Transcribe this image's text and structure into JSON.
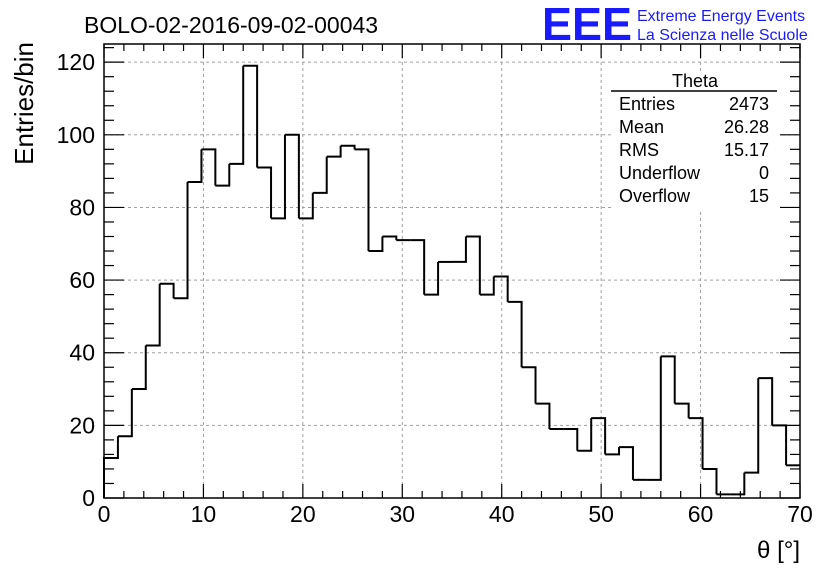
{
  "title": "BOLO-02-2016-09-02-00043",
  "logo": {
    "mark": "EEE",
    "line1": "Extreme Energy Events",
    "line2": "La Scienza nelle Scuole",
    "color": "#1a1aff"
  },
  "stats": {
    "name": "Theta",
    "rows": [
      {
        "label": "Entries",
        "value": "2473"
      },
      {
        "label": "Mean",
        "value": "26.28"
      },
      {
        "label": "RMS",
        "value": "15.17"
      },
      {
        "label": "Underflow",
        "value": "0"
      },
      {
        "label": "Overflow",
        "value": "15"
      }
    ]
  },
  "chart_data": {
    "type": "histogram",
    "title": "BOLO-02-2016-09-02-00043",
    "xlabel": "θ [°]",
    "ylabel": "Entries/bin",
    "xlim": [
      0,
      70
    ],
    "ylim": [
      0,
      125
    ],
    "bin_width": 1.4,
    "x_ticks": [
      0,
      10,
      20,
      30,
      40,
      50,
      60,
      70
    ],
    "y_ticks": [
      0,
      20,
      40,
      60,
      80,
      100,
      120
    ],
    "grid": true,
    "counts": [
      11,
      17,
      30,
      42,
      59,
      55,
      87,
      96,
      86,
      92,
      119,
      91,
      77,
      100,
      77,
      84,
      94,
      97,
      96,
      68,
      72,
      71,
      71,
      56,
      65,
      65,
      72,
      56,
      61,
      54,
      36,
      26,
      19,
      19,
      13,
      22,
      12,
      14,
      5,
      5,
      39,
      26,
      22,
      8,
      1,
      1,
      7,
      33,
      20,
      9
    ],
    "line_color": "#000000"
  }
}
